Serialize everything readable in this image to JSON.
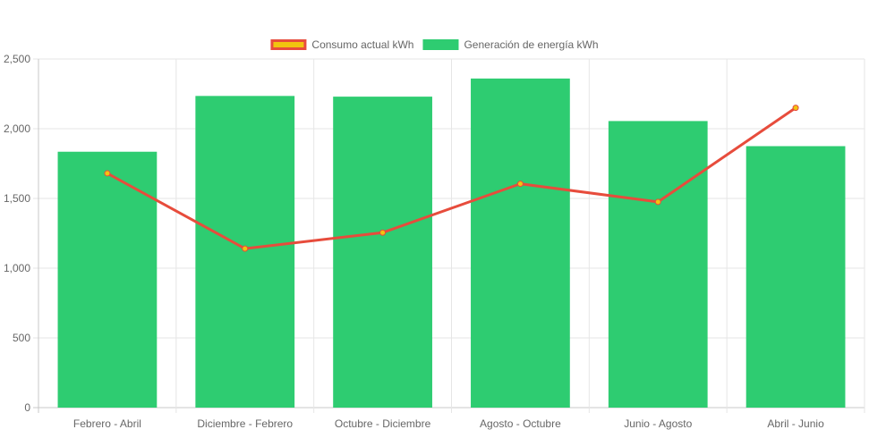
{
  "chart_data": {
    "type": "bar",
    "categories": [
      "Febrero - Abril",
      "Diciembre - Febrero",
      "Octubre - Diciembre",
      "Agosto - Octubre",
      "Junio - Agosto",
      "Abril - Junio"
    ],
    "series": [
      {
        "name": "Consumo actual kWh",
        "type": "line",
        "values": [
          1680,
          1140,
          1255,
          1605,
          1475,
          2150
        ],
        "color": "#e74c3c",
        "point_fill": "#f1c40f"
      },
      {
        "name": "Generación de energía kWh",
        "type": "bar",
        "values": [
          1835,
          2235,
          2230,
          2360,
          2055,
          1875
        ],
        "color": "#2ecc71"
      }
    ],
    "y_ticks": [
      "0",
      "500",
      "1,000",
      "1,500",
      "2,000",
      "2,500"
    ],
    "ylim": [
      0,
      2500
    ],
    "grid": true,
    "legend_position": "top-center",
    "title": "",
    "xlabel": "",
    "ylabel": ""
  }
}
